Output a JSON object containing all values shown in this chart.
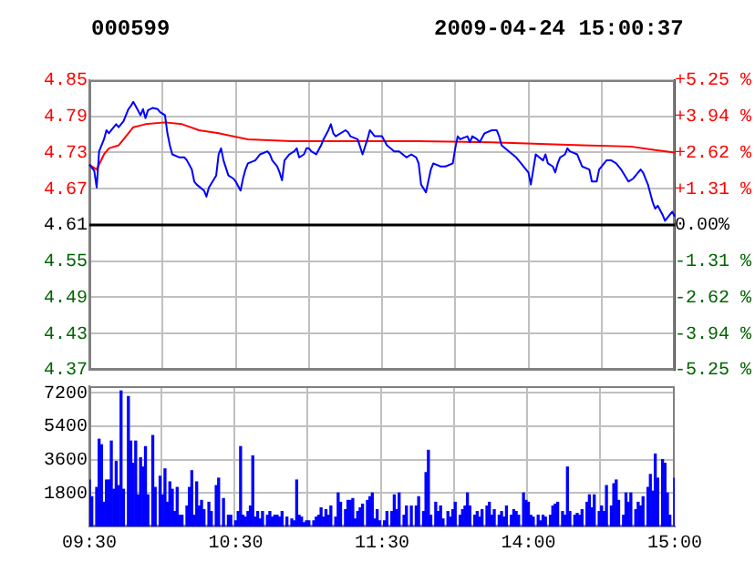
{
  "chart_data": [
    {
      "type": "line",
      "title": "000599",
      "subtitle": "2009-04-24 15:00:37",
      "categories": [
        null,
        null,
        null,
        null,
        null,
        null,
        null,
        null,
        null,
        null,
        null,
        null,
        null,
        null,
        null,
        null,
        null,
        null,
        null,
        null,
        null,
        null,
        null,
        null,
        null,
        null,
        null,
        null,
        null,
        null,
        null,
        null,
        null,
        null,
        null,
        null,
        null,
        null,
        null,
        null,
        null,
        null,
        null,
        null,
        null,
        null,
        null,
        null,
        null,
        null,
        null,
        null,
        null,
        null,
        null,
        null,
        null,
        null,
        null,
        null,
        null,
        null,
        null,
        null,
        null,
        null,
        null,
        null,
        null,
        null,
        null,
        null,
        null,
        null,
        null,
        null,
        null,
        null,
        null,
        null,
        null,
        null,
        null,
        null,
        null,
        null,
        null,
        null,
        null,
        null,
        null,
        null,
        null,
        null,
        null,
        null,
        null,
        null,
        null,
        null,
        null,
        null,
        null,
        null,
        null,
        null,
        null,
        null,
        null,
        null,
        null,
        null,
        null,
        null,
        null,
        null,
        null,
        null,
        null,
        null,
        null,
        null,
        null,
        null,
        null,
        null,
        null,
        null,
        null,
        null,
        null,
        null,
        null,
        null,
        null,
        null,
        null,
        null,
        null,
        null,
        null,
        null,
        null,
        null,
        null,
        null,
        null,
        null,
        null,
        null,
        null,
        null,
        null,
        null,
        null,
        null,
        null,
        null,
        null,
        null,
        null,
        null,
        null,
        null,
        null,
        null,
        null,
        null,
        null,
        null,
        null,
        null,
        null,
        null,
        null,
        null,
        null,
        null,
        null,
        null,
        null,
        null,
        null,
        null,
        null,
        null,
        null,
        null,
        null,
        null,
        null,
        null,
        null,
        null,
        null,
        null,
        null,
        null,
        null,
        null,
        null,
        null,
        null,
        null,
        null,
        null,
        null,
        null,
        null,
        null,
        null,
        null,
        null,
        null,
        null,
        null,
        null,
        null,
        null,
        null,
        null,
        null,
        null,
        null,
        null,
        null,
        null,
        null,
        null,
        null,
        null,
        null,
        null,
        null,
        null,
        null,
        null,
        null,
        null,
        null,
        null
      ],
      "ylim": [
        4.37,
        4.85
      ],
      "yticks": [
        4.37,
        4.43,
        4.49,
        4.55,
        4.61,
        4.67,
        4.73,
        4.79,
        4.85
      ],
      "y2lim": [
        -5.25,
        5.25
      ],
      "y2ticks": [
        {
          "value": -5.25,
          "label": "-5.25 %"
        },
        {
          "value": -3.94,
          "label": "-3.94 %"
        },
        {
          "value": -2.62,
          "label": "-2.62 %"
        },
        {
          "value": -1.31,
          "label": "-1.31 %"
        },
        {
          "value": 0,
          "label": "0.00%"
        },
        {
          "value": 1.31,
          "label": "+1.31 %"
        },
        {
          "value": 2.62,
          "label": "+2.62 %"
        },
        {
          "value": 3.94,
          "label": "+3.94 %"
        },
        {
          "value": 5.25,
          "label": "+5.25 %"
        }
      ],
      "tick_labels": "y",
      "grid": true,
      "marker": "none",
      "ref_lines": [
        {
          "axis": "y",
          "value": 4.61,
          "color": "#000000"
        }
      ],
      "series": [
        {
          "color": "#0000ff",
          "values": [
            4.71,
            null,
            4.7,
            4.672,
            4.732,
            null,
            4.752,
            4.767,
            4.762,
            4.767,
            null,
            4.777,
            4.772,
            4.777,
            4.782,
            null,
            4.802,
            4.807,
            4.814,
            4.807,
            null,
            4.792,
            4.802,
            4.787,
            4.8,
            null,
            4.804,
            null,
            4.802,
            4.797,
            null,
            4.792,
            4.762,
            4.742,
            4.727,
            null,
            null,
            4.722,
            null,
            4.722,
            4.717,
            null,
            4.702,
            4.682,
            4.677,
            null,
            null,
            4.667,
            4.657,
            4.672,
            null,
            null,
            4.692,
            4.727,
            4.737,
            4.717,
            null,
            4.692,
            null,
            4.687,
            4.682,
            null,
            4.667,
            4.687,
            4.702,
            4.712,
            null,
            null,
            4.717,
            null,
            4.727,
            null,
            null,
            4.732,
            4.727,
            4.717,
            null,
            4.707,
            4.697,
            4.684,
            4.717,
            null,
            4.727,
            null,
            4.732,
            4.737,
            4.722,
            null,
            4.727,
            4.737,
            4.737,
            4.732,
            null,
            4.727,
            null,
            4.742,
            4.752,
            null,
            4.767,
            4.777,
            4.762,
            4.757,
            null,
            null,
            null,
            4.767,
            4.764,
            4.757,
            null,
            null,
            4.752,
            null,
            4.727,
            null,
            4.752,
            4.767,
            null,
            4.757,
            null,
            null,
            4.757,
            null,
            4.742,
            null,
            null,
            4.732,
            null,
            4.732,
            null,
            null,
            4.722,
            null,
            4.727,
            null,
            4.722,
            4.712,
            4.677,
            null,
            4.664,
            null,
            4.702,
            4.712,
            null,
            null,
            4.707,
            null,
            4.707,
            null,
            null,
            4.712,
            4.737,
            4.757,
            4.752,
            null,
            null,
            4.757,
            4.747,
            4.757,
            null,
            4.752,
            4.747,
            null,
            4.762,
            null,
            null,
            4.767,
            null,
            4.767,
            4.757,
            4.742,
            null,
            null,
            4.732,
            null,
            null,
            4.722,
            null,
            4.712,
            null,
            null,
            4.697,
            4.677,
            4.702,
            4.727,
            null,
            null,
            4.717,
            4.727,
            4.712,
            null,
            4.707,
            4.697,
            4.712,
            4.722,
            null,
            4.727,
            4.737,
            4.732,
            null,
            null,
            4.727,
            4.717,
            4.707,
            null,
            null,
            4.702,
            4.682,
            null,
            4.682,
            4.702,
            null,
            null,
            4.717,
            null,
            4.717,
            null,
            4.712,
            null,
            4.702,
            null,
            null,
            4.682,
            null,
            4.687,
            null,
            null,
            4.702,
            4.697,
            null,
            4.677,
            null,
            4.647,
            4.637,
            4.642,
            null,
            4.627,
            4.617,
            null,
            4.627,
            4.632,
            4.624
          ]
        },
        {
          "color": "#ff0000",
          "values": [
            4.71,
            null,
            null,
            4.702,
            null,
            null,
            4.727,
            null,
            4.737,
            null,
            null,
            null,
            4.742,
            null,
            null,
            null,
            4.762,
            null,
            4.772,
            null,
            null,
            null,
            null,
            4.777,
            null,
            null,
            null,
            null,
            null,
            null,
            null,
            4.78,
            null,
            null,
            null,
            null,
            null,
            null,
            4.777,
            null,
            null,
            null,
            null,
            null,
            null,
            4.767,
            null,
            null,
            null,
            null,
            null,
            null,
            null,
            4.762,
            null,
            null,
            null,
            null,
            null,
            null,
            null,
            null,
            null,
            null,
            null,
            4.752,
            null,
            null,
            null,
            null,
            null,
            null,
            null,
            null,
            null,
            null,
            null,
            null,
            null,
            null,
            null,
            null,
            null,
            4.749,
            null,
            null,
            null,
            null,
            null,
            null,
            null,
            null,
            null,
            null,
            null,
            null,
            null,
            null,
            null,
            null,
            null,
            null,
            null,
            null,
            null,
            null,
            null,
            null,
            null,
            null,
            null,
            null,
            null,
            null,
            null,
            null,
            null,
            null,
            null,
            null,
            null,
            null,
            null,
            null,
            null,
            null,
            null,
            null,
            null,
            null,
            null,
            null,
            null,
            null,
            null,
            4.749,
            null,
            null,
            null,
            null,
            null,
            null,
            null,
            null,
            null,
            null,
            null,
            null,
            null,
            null,
            null,
            null,
            null,
            null,
            null,
            null,
            null,
            null,
            null,
            null,
            null,
            null,
            null,
            null,
            null,
            4.747,
            null,
            null,
            null,
            null,
            null,
            null,
            null,
            null,
            null,
            null,
            null,
            null,
            null,
            null,
            null,
            null,
            null,
            null,
            null,
            null,
            null,
            null,
            null,
            null,
            null,
            null,
            null,
            null,
            null,
            null,
            null,
            null,
            null,
            null,
            null,
            null,
            4.742,
            null,
            null,
            null,
            null,
            null,
            null,
            null,
            null,
            null,
            null,
            null,
            null,
            null,
            null,
            null,
            null,
            null,
            null,
            null,
            4.74,
            null,
            null,
            null,
            null,
            null,
            null,
            null,
            null,
            null,
            4.734,
            null,
            null,
            null,
            null,
            null,
            null,
            null,
            4.73
          ]
        }
      ]
    },
    {
      "type": "bar",
      "categories": [
        "09:30",
        null,
        null,
        null,
        null,
        null,
        null,
        null,
        null,
        null,
        null,
        null,
        null,
        null,
        null,
        null,
        null,
        null,
        null,
        null,
        null,
        null,
        null,
        null,
        null,
        null,
        null,
        null,
        null,
        null,
        null,
        null,
        null,
        null,
        null,
        null,
        null,
        null,
        null,
        null,
        null,
        null,
        null,
        null,
        null,
        null,
        null,
        null,
        null,
        null,
        null,
        null,
        null,
        null,
        null,
        null,
        null,
        null,
        null,
        null,
        "10:30",
        null,
        null,
        null,
        null,
        null,
        null,
        null,
        null,
        null,
        null,
        null,
        null,
        null,
        null,
        null,
        null,
        null,
        null,
        null,
        null,
        null,
        null,
        null,
        null,
        null,
        null,
        null,
        null,
        null,
        null,
        null,
        null,
        null,
        null,
        null,
        null,
        null,
        null,
        null,
        null,
        null,
        null,
        null,
        null,
        null,
        null,
        null,
        null,
        null,
        null,
        null,
        null,
        null,
        null,
        null,
        null,
        null,
        null,
        null,
        "11:30",
        null,
        null,
        null,
        null,
        null,
        null,
        null,
        null,
        null,
        null,
        null,
        null,
        null,
        null,
        null,
        null,
        null,
        null,
        null,
        null,
        null,
        null,
        null,
        null,
        null,
        null,
        null,
        null,
        null,
        null,
        null,
        null,
        null,
        null,
        null,
        null,
        null,
        null,
        null,
        null,
        null,
        null,
        null,
        null,
        null,
        null,
        null,
        null,
        null,
        null,
        null,
        null,
        null,
        null,
        null,
        null,
        null,
        null,
        null,
        "14:00",
        null,
        null,
        null,
        null,
        null,
        null,
        null,
        null,
        null,
        null,
        null,
        null,
        null,
        null,
        null,
        null,
        null,
        null,
        null,
        null,
        null,
        null,
        null,
        null,
        null,
        null,
        null,
        null,
        null,
        null,
        null,
        null,
        null,
        null,
        null,
        null,
        null,
        null,
        null,
        null,
        null,
        null,
        null,
        null,
        null,
        null,
        null,
        null,
        null,
        null,
        null,
        null,
        null,
        null,
        null,
        null,
        null,
        null,
        null,
        "15:00"
      ],
      "ylim": [
        0,
        7560
      ],
      "yticks": [
        1800,
        3600,
        5400,
        7200
      ],
      "grid": true,
      "series": [
        {
          "color": "#0000ff",
          "values": [
            2500,
            1600,
            null,
            2100,
            4700,
            4400,
            1300,
            2500,
            2500,
            4600,
            2000,
            3500,
            2200,
            7300,
            2000,
            null,
            7000,
            4600,
            3400,
            4600,
            1700,
            3700,
            3200,
            4300,
            1700,
            null,
            4900,
            2100,
            null,
            2700,
            1700,
            3100,
            1300,
            2400,
            2000,
            800,
            2100,
            600,
            600,
            null,
            1100,
            2100,
            3000,
            600,
            2400,
            1100,
            1400,
            900,
            null,
            1300,
            800,
            null,
            2200,
            2600,
            null,
            1500,
            null,
            600,
            600,
            null,
            300,
            800,
            4300,
            600,
            500,
            800,
            1100,
            3800,
            500,
            800,
            400,
            800,
            null,
            600,
            800,
            500,
            600,
            600,
            500,
            800,
            null,
            500,
            null,
            400,
            300,
            2500,
            600,
            500,
            200,
            300,
            300,
            null,
            300,
            500,
            600,
            1000,
            500,
            900,
            600,
            1100,
            null,
            500,
            1800,
            1300,
            null,
            900,
            1400,
            1400,
            1500,
            400,
            800,
            1000,
            1200,
            null,
            1400,
            1600,
            1800,
            400,
            900,
            300,
            null,
            300,
            800,
            null,
            800,
            1700,
            900,
            1800,
            null,
            600,
            1100,
            null,
            1100,
            null,
            1100,
            1600,
            null,
            800,
            2900,
            4100,
            600,
            null,
            1300,
            800,
            1100,
            400,
            null,
            800,
            500,
            900,
            1300,
            null,
            600,
            900,
            1100,
            1800,
            1100,
            null,
            600,
            800,
            500,
            900,
            null,
            1100,
            1300,
            600,
            900,
            null,
            600,
            800,
            500,
            1100,
            null,
            600,
            900,
            800,
            600,
            null,
            1800,
            1400,
            1300,
            600,
            500,
            null,
            600,
            300,
            600,
            500,
            null,
            600,
            1100,
            1200,
            1300,
            null,
            800,
            600,
            3200,
            800,
            null,
            600,
            700,
            600,
            900,
            null,
            1300,
            1700,
            1000,
            1700,
            null,
            800,
            1100,
            800,
            2200,
            null,
            1100,
            2300,
            2500,
            1400,
            null,
            600,
            1800,
            1300,
            1800,
            null,
            900,
            1300,
            1100,
            1600,
            null,
            2100,
            2800,
            1900,
            3900,
            2600,
            null,
            3600,
            3400,
            1800,
            600,
            null,
            2600
          ]
        }
      ]
    }
  ]
}
